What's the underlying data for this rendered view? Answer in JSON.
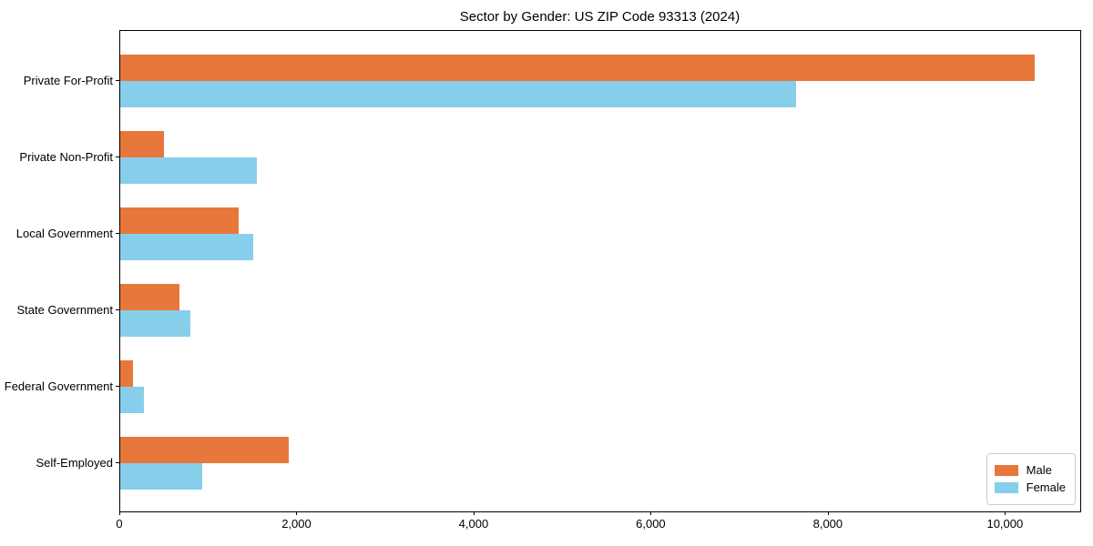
{
  "title": "Sector by Gender: US ZIP Code 93313 (2024)",
  "chart_data": {
    "type": "bar",
    "orientation": "horizontal",
    "title": "Sector by Gender: US ZIP Code 93313 (2024)",
    "categories": [
      "Private For-Profit",
      "Private Non-Profit",
      "Local Government",
      "State Government",
      "Federal Government",
      "Self-Employed"
    ],
    "series": [
      {
        "name": "Male",
        "color": "#e8773c",
        "values": [
          10330,
          490,
          1340,
          670,
          140,
          1900
        ]
      },
      {
        "name": "Female",
        "color": "#87ceeb",
        "values": [
          7630,
          1540,
          1500,
          795,
          270,
          925
        ]
      }
    ],
    "xlabel": "",
    "ylabel": "",
    "xlim": [
      0,
      10850
    ],
    "x_ticks": [
      0,
      2000,
      4000,
      6000,
      8000,
      10000
    ],
    "x_tick_labels": [
      "0",
      "2,000",
      "4,000",
      "6,000",
      "8,000",
      "10,000"
    ],
    "grid": false,
    "legend_position": "lower right",
    "background": "#ffffff",
    "text_color": "#000000"
  }
}
